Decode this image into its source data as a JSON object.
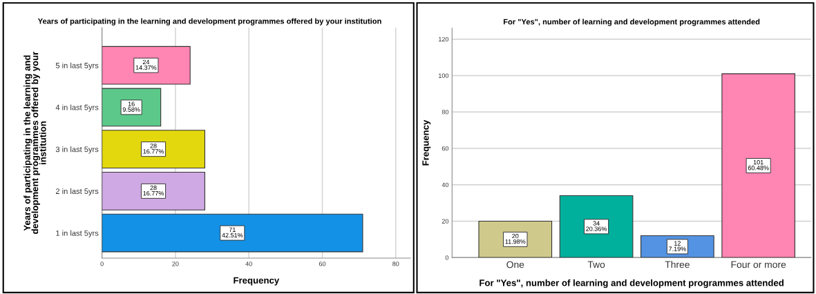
{
  "chart_data": [
    {
      "type": "bar",
      "orientation": "horizontal",
      "title": "Years of participating in the learning and development programmes offered by your institution",
      "xlabel": "Frequency",
      "ylabel": "Years of participating in the learning and development programmes offered by your institution",
      "categories": [
        "5 in last 5yrs",
        "4 in last 5yrs",
        "3 in last 5yrs",
        "2 in last 5yrs",
        "1 in last 5yrs"
      ],
      "values": [
        24,
        16,
        28,
        28,
        71
      ],
      "colors": [
        "#ff85b3",
        "#5cc98a",
        "#e3d80e",
        "#cfa9e3",
        "#1391e6"
      ],
      "value_labels": [
        "24\n14.37%",
        "16\n9.58%",
        "28\n16.77%",
        "28\n16.77%",
        "71\n42.51%"
      ],
      "xlim": [
        0,
        84
      ],
      "xticks": [
        0,
        20,
        40,
        60,
        80
      ],
      "grid": "x"
    },
    {
      "type": "bar",
      "title": "For \"Yes\", number of learning and development programmes attended",
      "xlabel": "For \"Yes\", number of learning and development programmes attended",
      "ylabel": "Frequency",
      "categories": [
        "One",
        "Two",
        "Three",
        "Four or more"
      ],
      "values": [
        20,
        34,
        12,
        101
      ],
      "colors": [
        "#d0c98c",
        "#00b09c",
        "#5493e3",
        "#ff85b3"
      ],
      "value_labels": [
        "20\n11.98%",
        "34\n20.36%",
        "12\n7.19%",
        "101\n60.48%"
      ],
      "ylim": [
        0,
        126
      ],
      "yticks": [
        0,
        20,
        40,
        60,
        80,
        100,
        120
      ],
      "grid": "y"
    }
  ]
}
